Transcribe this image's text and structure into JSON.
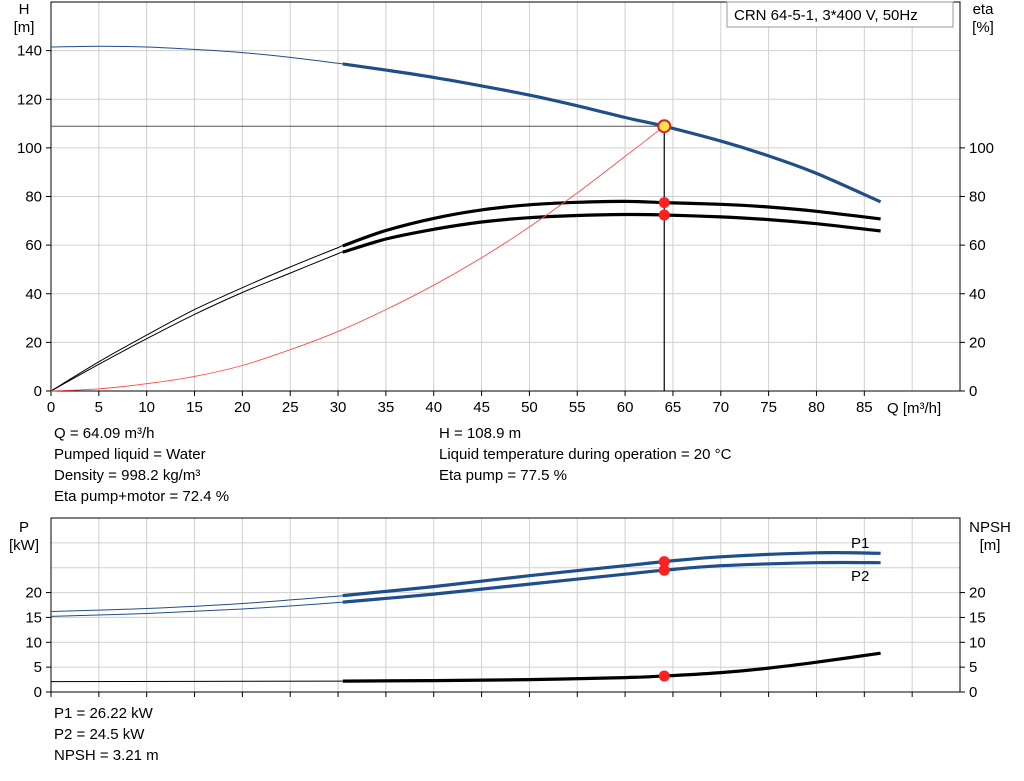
{
  "title_box": "CRN 64-5-1, 3*400 V, 50Hz",
  "chart_data": [
    {
      "type": "line",
      "name": "head-efficiency",
      "title": "CRN 64-5-1, 3*400 V, 50Hz",
      "xlabel": "Q [m³/h]",
      "ylabel": "H\n[m]",
      "y2label": "eta\n[%]",
      "xlim": [
        0,
        95
      ],
      "ylim": [
        0,
        160
      ],
      "y2lim": [
        0,
        160
      ],
      "xticks": [
        0,
        5,
        10,
        15,
        20,
        25,
        30,
        35,
        40,
        45,
        50,
        55,
        60,
        65,
        70,
        75,
        80,
        85
      ],
      "yticks": [
        0,
        20,
        40,
        60,
        80,
        100,
        120,
        140
      ],
      "y2ticks": [
        0,
        20,
        40,
        60,
        80,
        100
      ],
      "grid": true,
      "series": [
        {
          "key": "H",
          "axis": "left",
          "color": "#1f4e8c",
          "valid_from": 30.5,
          "x": [
            0,
            5,
            10,
            15,
            20,
            25,
            30,
            35,
            40,
            45,
            50,
            55,
            60,
            64.09,
            70,
            75,
            80,
            86.7
          ],
          "y": [
            141.5,
            141.8,
            141.5,
            140.5,
            139.2,
            137.2,
            134.8,
            132.0,
            129.0,
            125.5,
            121.7,
            117.3,
            112.5,
            108.9,
            102.8,
            96.7,
            89.5,
            77.8
          ]
        },
        {
          "key": "eta_pump",
          "axis": "right",
          "color": "#000000",
          "valid_from": 30.5,
          "x": [
            0,
            5,
            10,
            15,
            20,
            25,
            30,
            35,
            40,
            45,
            50,
            55,
            60,
            64.09,
            70,
            75,
            80,
            86.7
          ],
          "y": [
            0,
            12,
            23,
            33.5,
            42.5,
            51,
            59,
            66,
            71,
            74.5,
            76.6,
            77.6,
            78,
            77.5,
            76.8,
            75.7,
            73.9,
            70.8
          ]
        },
        {
          "key": "eta_total",
          "axis": "right",
          "color": "#000000",
          "valid_from": 30.5,
          "x": [
            0,
            5,
            10,
            15,
            20,
            25,
            30,
            35,
            40,
            45,
            50,
            55,
            60,
            64.09,
            70,
            75,
            80,
            86.7
          ],
          "y": [
            0,
            11,
            21.5,
            31.5,
            40.5,
            48.5,
            56.5,
            62.5,
            66.5,
            69.5,
            71.3,
            72.2,
            72.6,
            72.4,
            71.6,
            70.5,
            68.8,
            65.8
          ]
        },
        {
          "key": "system_curve",
          "axis": "left",
          "color": "#ff4d4d",
          "valid_from": 0,
          "x": [
            0,
            5,
            10,
            15,
            20,
            25,
            30,
            35,
            40,
            45,
            50,
            55,
            60,
            64.09
          ],
          "y": [
            0,
            0.9,
            3,
            6,
            10.5,
            17,
            24.5,
            33.5,
            43.5,
            54.8,
            67.5,
            81.5,
            96.5,
            108.9
          ]
        }
      ],
      "operating_point": {
        "x": 64.09,
        "H": 108.9,
        "eta_pump": 77.5,
        "eta_total": 72.4
      }
    },
    {
      "type": "line",
      "name": "power-npsh",
      "xlabel": "",
      "ylabel": "P\n[kW]",
      "y2label": "NPSH\n[m]",
      "xlim": [
        0,
        95
      ],
      "ylim": [
        0,
        35
      ],
      "y2lim": [
        0,
        35
      ],
      "yticks": [
        0,
        5,
        10,
        15,
        20
      ],
      "y2ticks": [
        0,
        5,
        10,
        15,
        20
      ],
      "grid": true,
      "series": [
        {
          "key": "P1",
          "name": "P1",
          "axis": "left",
          "color": "#1f4e8c",
          "valid_from": 30.5,
          "x": [
            0,
            10,
            20,
            30,
            40,
            50,
            60,
            64.09,
            70,
            80,
            86.7
          ],
          "y": [
            16.2,
            16.8,
            17.8,
            19.3,
            21.2,
            23.4,
            25.4,
            26.22,
            27.2,
            28.0,
            27.9
          ]
        },
        {
          "key": "P2",
          "name": "P2",
          "axis": "left",
          "color": "#1f4e8c",
          "valid_from": 30.5,
          "x": [
            0,
            10,
            20,
            30,
            40,
            50,
            60,
            64.09,
            70,
            80,
            86.7
          ],
          "y": [
            15.2,
            15.8,
            16.7,
            18.0,
            19.7,
            21.7,
            23.7,
            24.5,
            25.4,
            26.0,
            26.0
          ]
        },
        {
          "key": "NPSH",
          "axis": "right",
          "color": "#000000",
          "valid_from": 30.5,
          "x": [
            0,
            30.5,
            40,
            50,
            60,
            64.09,
            70,
            75,
            80,
            86.7
          ],
          "y": [
            2.1,
            2.2,
            2.3,
            2.5,
            2.9,
            3.21,
            3.9,
            4.8,
            6.0,
            7.8
          ]
        }
      ],
      "operating_point": {
        "x": 64.09,
        "P1": 26.22,
        "P2": 24.5,
        "NPSH": 3.21
      }
    }
  ],
  "readout_top": {
    "left": [
      "Q = 64.09 m³/h",
      "Pumped liquid = Water",
      "Density = 998.2 kg/m³",
      "Eta pump+motor = 72.4 %"
    ],
    "right": [
      "H = 108.9 m",
      "Liquid temperature during operation = 20 °C",
      "Eta pump = 77.5 %"
    ]
  },
  "readout_bottom": [
    "P1 = 26.22 kW",
    "P2 = 24.5 kW",
    "NPSH = 3.21 m"
  ]
}
